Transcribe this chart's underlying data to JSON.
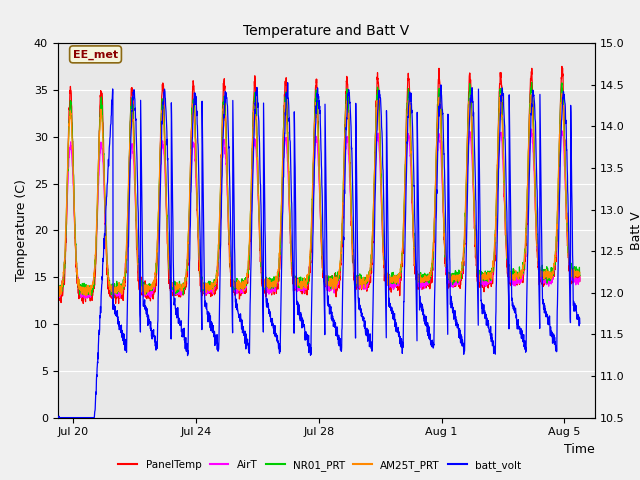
{
  "title": "Temperature and Batt V",
  "xlabel": "Time",
  "ylabel_left": "Temperature (C)",
  "ylabel_right": "Batt V",
  "annotation": "EE_met",
  "xlim_days": [
    0,
    17.5
  ],
  "ylim_left": [
    0,
    40
  ],
  "ylim_right": [
    10.5,
    15.0
  ],
  "xtick_labels": [
    "Jul 20",
    "Jul 24",
    "Jul 28",
    "Aug 1",
    "Aug 5"
  ],
  "xtick_positions": [
    0.5,
    4.5,
    8.5,
    12.5,
    16.5
  ],
  "ytick_left": [
    0,
    5,
    10,
    15,
    20,
    25,
    30,
    35,
    40
  ],
  "ytick_right": [
    10.5,
    11.0,
    11.5,
    12.0,
    12.5,
    13.0,
    13.5,
    14.0,
    14.5,
    15.0
  ],
  "series_colors": {
    "PanelTemp": "#ff0000",
    "AirT": "#ff00ff",
    "NR01_PRT": "#00cc00",
    "AM25T_PRT": "#ff8800",
    "batt_volt": "#0000ff"
  },
  "legend_entries": [
    "PanelTemp",
    "AirT",
    "NR01_PRT",
    "AM25T_PRT",
    "batt_volt"
  ],
  "fig_bg_color": "#f0f0f0",
  "plot_bg_upper": "#e8e8e8",
  "plot_bg_lower": "#d0d0d0",
  "grid_color": "#ffffff",
  "title_fontsize": 10,
  "axis_fontsize": 9,
  "tick_fontsize": 8
}
